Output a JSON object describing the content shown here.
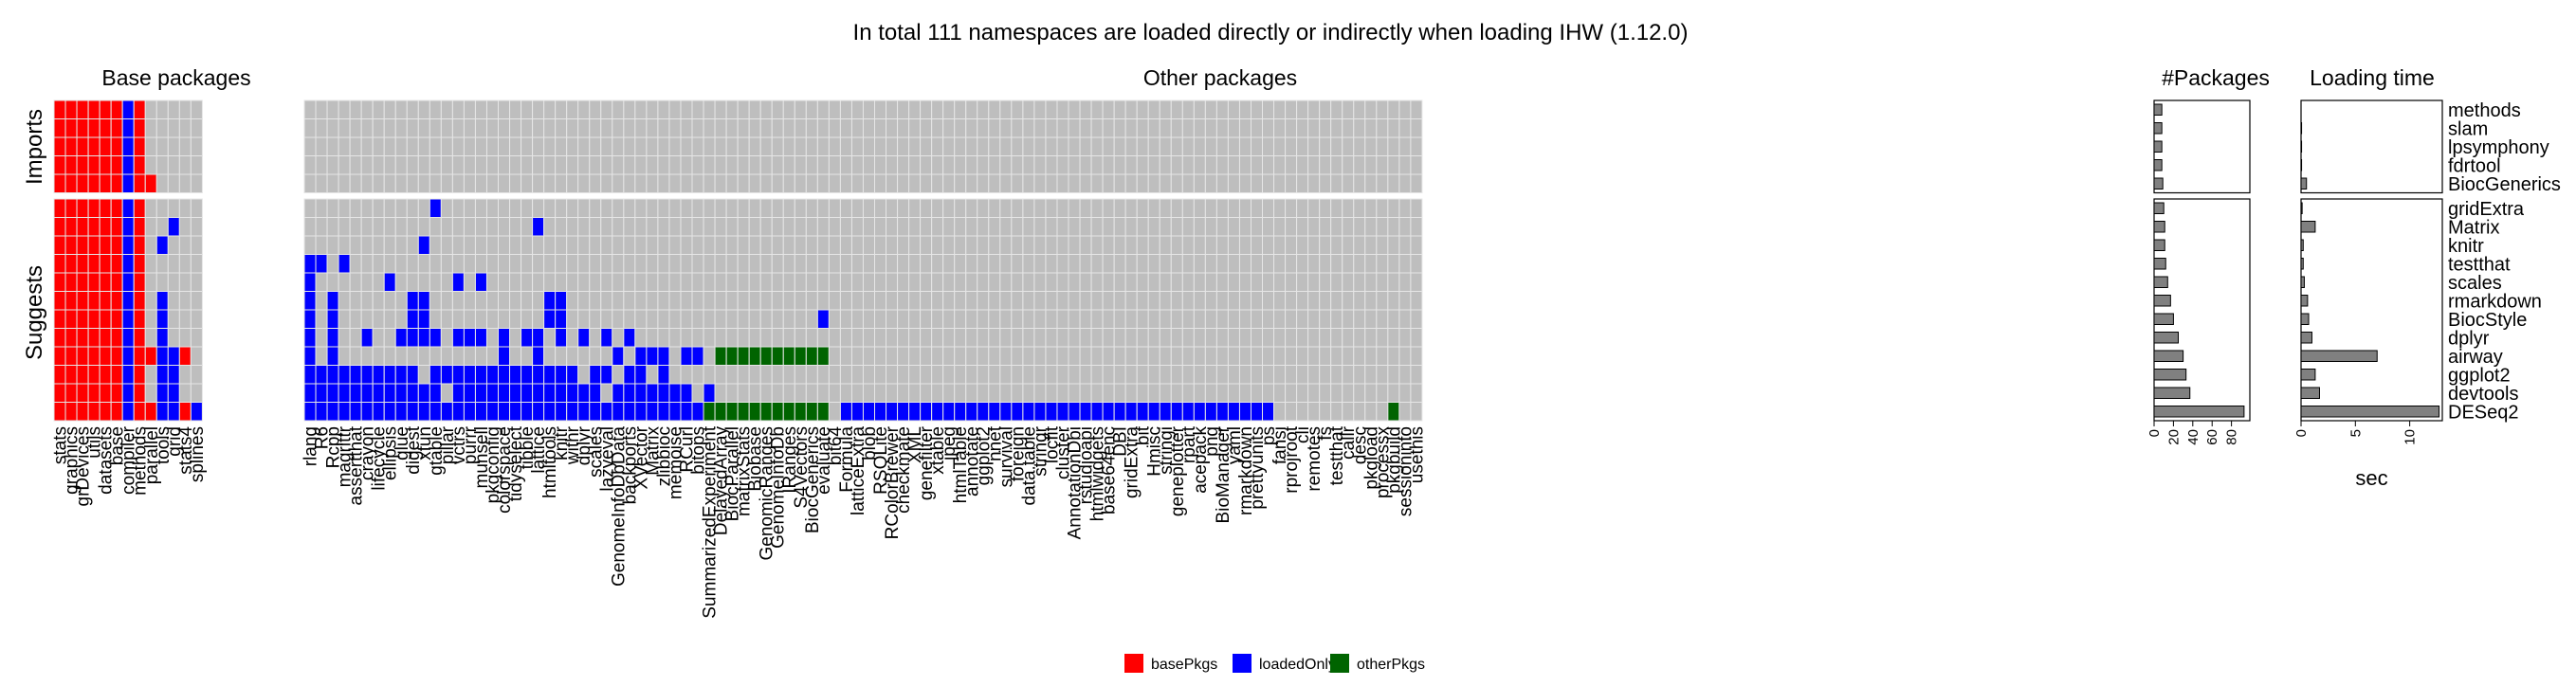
{
  "chart_data": {
    "type": "heatmap",
    "title": "In total 111 namespaces are loaded directly or indirectly when loading IHW (1.12.0)",
    "sections": [
      "Base packages",
      "Other packages",
      "#Packages",
      "Loading time"
    ],
    "row_groups": [
      "Imports",
      "Suggests"
    ],
    "rows": [
      "methods",
      "slam",
      "lpsymphony",
      "fdrtool",
      "BiocGenerics",
      "gridExtra",
      "Matrix",
      "knitr",
      "testthat",
      "scales",
      "rmarkdown",
      "BiocStyle",
      "dplyr",
      "airway",
      "ggplot2",
      "devtools",
      "DESeq2"
    ],
    "imports_row_count": 5,
    "base_columns": [
      "stats",
      "graphics",
      "grDevices",
      "utils",
      "datasets",
      "base",
      "compiler",
      "methods",
      "parallel",
      "tools",
      "grid",
      "stats4",
      "splines"
    ],
    "other_columns": [
      "rlang",
      "R6",
      "Rcpp",
      "magrittr",
      "assertthat",
      "crayon",
      "lifecycle",
      "ellipsis",
      "glue",
      "digest",
      "xfun",
      "gtable",
      "pillar",
      "vctrs",
      "purrr",
      "munsell",
      "pkgconfig",
      "colorspace",
      "tidyselect",
      "tibble",
      "lattice",
      "htmltools",
      "knitr",
      "withr",
      "dplyr",
      "scales",
      "lazyeval",
      "GenomeInfoDbData",
      "backports",
      "XVector",
      "Matrix",
      "zlibbioc",
      "memoise",
      "RCurl",
      "bitops",
      "SummarizedExperiment",
      "DelayedArray",
      "BiocParallel",
      "matrixStats",
      "Biobase",
      "GenomicRanges",
      "GenomeInfoDb",
      "IRanges",
      "S4Vectors",
      "BiocGenerics",
      "evaluate",
      "bit64",
      "Formula",
      "latticeExtra",
      "blob",
      "RSQLite",
      "RColorBrewer",
      "checkmate",
      "XML",
      "genefilter",
      "xtable",
      "jpeg",
      "htmlTable",
      "annotate",
      "ggplot2",
      "nnet",
      "survival",
      "foreign",
      "data.table",
      "stringr",
      "locfit",
      "cluster",
      "AnnotationDbi",
      "rstudioapi",
      "htmlwidgets",
      "base64enc",
      "DBI",
      "gridExtra",
      "bit",
      "Hmisc",
      "stringi",
      "geneplotter",
      "rpart",
      "acepack",
      "png",
      "BioManager",
      "yaml",
      "rmarkdown",
      "prettyunits",
      "ps",
      "fansi",
      "rprojroot",
      "cli",
      "remotes",
      "fs",
      "testthat",
      "callr",
      "desc",
      "pkgload",
      "processx",
      "pkgbuild",
      "sessioninfo",
      "usethis"
    ],
    "legend": [
      {
        "label": "basePkgs",
        "color": "#ff0000"
      },
      {
        "label": "loadedOnly",
        "color": "#0000ff"
      },
      {
        "label": "otherPkgs",
        "color": "#006400"
      }
    ],
    "cell_colors": {
      "empty": "#bebebe",
      "basePkgs": "#ff0000",
      "loadedOnly": "#0000ff",
      "otherPkgs": "#006400"
    },
    "base_cells": {
      "methods": "RRRRRRBR",
      "slam": "RRRRRRBR",
      "lpsymphony": "RRRRRRBR",
      "fdrtool": "RRRRRRBR",
      "BiocGenerics": "RRRRRRBRR",
      "gridExtra": "RRRRRRBR",
      "Matrix": "RRRRRRBR..B",
      "knitr": "RRRRRRBR.B",
      "testthat": "RRRRRRBR",
      "scales": "RRRRRRBR",
      "rmarkdown": "RRRRRRBR.B",
      "BiocStyle": "RRRRRRBR.B",
      "dplyr": "RRRRRRBR.B",
      "airway": "RRRRRRBRRBBR",
      "ggplot2": "RRRRRRBR.BB",
      "devtools": "RRRRRRBR.BB",
      "DESeq2": "RRRRRRBRRBBRB"
    },
    "other_cells": {
      "methods": "",
      "slam": "",
      "lpsymphony": "",
      "fdrtool": "",
      "BiocGenerics": "",
      "gridExtra": "...........B",
      "Matrix": "....................B",
      "knitr": "..........B",
      "testthat": "BB.B",
      "scales": "B......B.....B.B",
      "rmarkdown": "B.B......BB..........BB.........................................................................",
      "BiocStyle": "B.B......BB..........BB......................B....................................................BBB",
      "dplyr": "B.B..B..BBBB.BBB.B.BB.B.B.B.B......................................................................",
      "airway": "B.B..............B..B......B.BBB.BB.GGGGGGGGGG",
      "ggplot2": "BBBBBBBBBB.BBBBBBBBBBBBB.BB.BB.B",
      "devtools": "BBBBBBBBBBBB.BBBBBBBBBBBBB.BBBBBBB.B.................................................................BBBBBBBBBBBBBBBBBBB.B",
      "DESeq2": "BBBBBBBBBBBBBBBBBBBBBBBBBBBBBBBBBBBGGGGGGGGGGG.BBBBBBBBBBBBBBBBBBBBBBBBBBBBBBBBBBBBBB..........G"
    },
    "n_packages": {
      "methods": 8,
      "slam": 8,
      "lpsymphony": 8,
      "fdrtool": 8,
      "BiocGenerics": 9,
      "gridExtra": 10,
      "Matrix": 11,
      "knitr": 11,
      "testthat": 12,
      "scales": 14,
      "rmarkdown": 17,
      "BiocStyle": 20,
      "dplyr": 25,
      "airway": 30,
      "ggplot2": 33,
      "devtools": 37,
      "DESeq2": 93
    },
    "loading_time_sec": {
      "methods": 0.0,
      "slam": 0.05,
      "lpsymphony": 0.05,
      "fdrtool": 0.05,
      "BiocGenerics": 0.5,
      "gridExtra": 0.1,
      "Matrix": 1.3,
      "knitr": 0.2,
      "testthat": 0.2,
      "scales": 0.3,
      "rmarkdown": 0.6,
      "BiocStyle": 0.7,
      "dplyr": 1.0,
      "airway": 7.0,
      "ggplot2": 1.3,
      "devtools": 1.7,
      "DESeq2": 12.7
    },
    "n_packages_axis": {
      "ticks": [
        0,
        20,
        40,
        60,
        80
      ],
      "xlim": [
        0,
        99
      ]
    },
    "loading_time_axis": {
      "ticks": [
        0,
        5,
        10
      ],
      "xlim": [
        0,
        13
      ],
      "xlabel": "sec"
    }
  }
}
